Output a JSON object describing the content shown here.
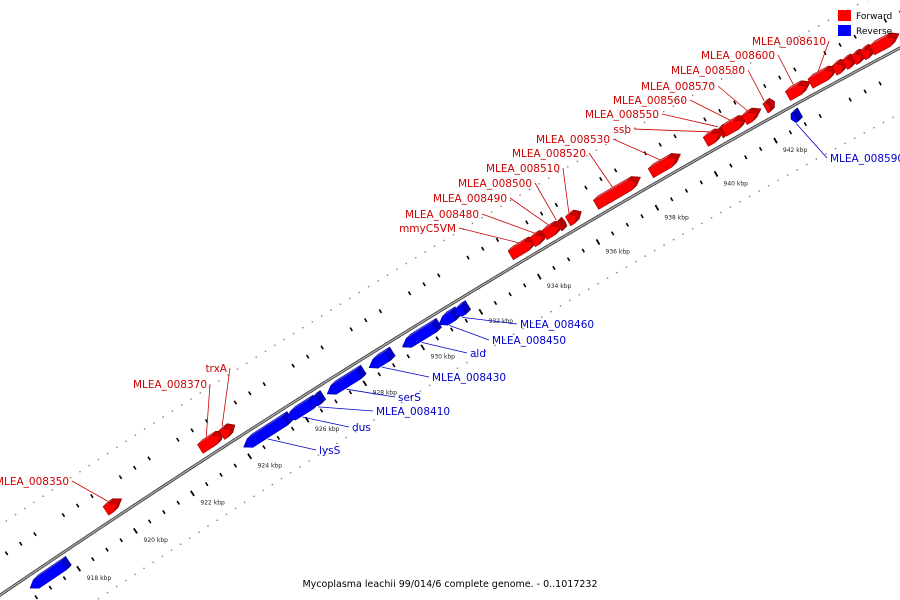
{
  "title": "Mycoplasma leachii 99/014/6 complete genome. - 0..1017232",
  "legend": {
    "placement": "top-right",
    "forward": {
      "label": "Forward",
      "color": "#ff0000"
    },
    "reverse": {
      "label": "Reverse",
      "color": "#0000ff"
    }
  },
  "colors": {
    "forward_label": "#cc0000",
    "reverse_label": "#0000cc",
    "backbone": "#888888",
    "tick": "#000000"
  },
  "axis": {
    "unit": "kbp",
    "ticks": [
      {
        "kbp": 918,
        "label": "918 kbp"
      },
      {
        "kbp": 920,
        "label": "920 kbp"
      },
      {
        "kbp": 922,
        "label": "922 kbp"
      },
      {
        "kbp": 924,
        "label": "924 kbp"
      },
      {
        "kbp": 926,
        "label": "926 kbp"
      },
      {
        "kbp": 928,
        "label": "928 kbp"
      },
      {
        "kbp": 930,
        "label": "930 kbp"
      },
      {
        "kbp": 932,
        "label": "932 kbp"
      },
      {
        "kbp": 934,
        "label": "934 kbp"
      },
      {
        "kbp": 936,
        "label": "936 kbp"
      },
      {
        "kbp": 938,
        "label": "938 kbp"
      },
      {
        "kbp": 940,
        "label": "940 kbp"
      },
      {
        "kbp": 942,
        "label": "942 kbp"
      }
    ]
  },
  "genes": [
    {
      "strand": "reverse",
      "start": 916.5,
      "end": 917.7,
      "label": ""
    },
    {
      "strand": "forward",
      "start": 919.6,
      "end": 920.0,
      "label": "MLEA_008350"
    },
    {
      "strand": "forward",
      "start": 922.9,
      "end": 923.6,
      "label": "MLEA_008370"
    },
    {
      "strand": "forward",
      "start": 923.65,
      "end": 923.95,
      "label": "trxA"
    },
    {
      "strand": "reverse",
      "start": 924.0,
      "end": 925.45,
      "label": "lysS"
    },
    {
      "strand": "reverse",
      "start": 925.5,
      "end": 926.35,
      "label": "dus"
    },
    {
      "strand": "reverse",
      "start": 926.35,
      "end": 926.6,
      "label": "MLEA_008410"
    },
    {
      "strand": "reverse",
      "start": 926.9,
      "end": 928.0,
      "label": "serS"
    },
    {
      "strand": "reverse",
      "start": 928.35,
      "end": 929.0,
      "label": "MLEA_008430"
    },
    {
      "strand": "reverse",
      "start": 929.5,
      "end": 930.6,
      "label": "ald"
    },
    {
      "strand": "reverse",
      "start": 930.75,
      "end": 931.25,
      "label": "MLEA_008450"
    },
    {
      "strand": "reverse",
      "start": 931.3,
      "end": 931.6,
      "label": "MLEA_008460"
    },
    {
      "strand": "forward",
      "start": 933.6,
      "end": 934.35,
      "label": "mmyC5VM"
    },
    {
      "strand": "forward",
      "start": 934.35,
      "end": 934.7,
      "label": "MLEA_008480"
    },
    {
      "strand": "forward",
      "start": 934.75,
      "end": 935.25,
      "label": "MLEA_008490"
    },
    {
      "strand": "forward",
      "start": 935.25,
      "end": 935.3,
      "label": "MLEA_008500"
    },
    {
      "strand": "forward",
      "start": 935.55,
      "end": 935.85,
      "label": "MLEA_008510"
    },
    {
      "strand": "forward",
      "start": 936.5,
      "end": 937.85,
      "label": "MLEA_008520"
    },
    {
      "strand": "forward",
      "start": 938.35,
      "end": 939.2,
      "label": "MLEA_008530"
    },
    {
      "strand": "forward",
      "start": 940.2,
      "end": 940.65,
      "label": "ssb"
    },
    {
      "strand": "forward",
      "start": 940.7,
      "end": 940.75,
      "label": "MLEA_008550"
    },
    {
      "strand": "forward",
      "start": 940.8,
      "end": 941.45,
      "label": "MLEA_008560"
    },
    {
      "strand": "forward",
      "start": 941.5,
      "end": 941.9,
      "label": "MLEA_008570"
    },
    {
      "strand": "forward",
      "start": 942.2,
      "end": 942.35,
      "label": "MLEA_008580"
    },
    {
      "strand": "reverse",
      "start": 942.7,
      "end": 942.85,
      "label": "MLEA_008590"
    },
    {
      "strand": "forward",
      "start": 942.95,
      "end": 943.55,
      "label": "MLEA_008600"
    },
    {
      "strand": "forward",
      "start": 943.7,
      "end": 944.45,
      "label": "MLEA_008610"
    },
    {
      "strand": "forward",
      "start": 944.5,
      "end": 944.8,
      "label": ""
    },
    {
      "strand": "forward",
      "start": 944.85,
      "end": 945.1,
      "label": ""
    },
    {
      "strand": "forward",
      "start": 945.15,
      "end": 945.4,
      "label": ""
    },
    {
      "strand": "forward",
      "start": 945.45,
      "end": 945.7,
      "label": ""
    },
    {
      "strand": "forward",
      "start": 945.75,
      "end": 946.5,
      "label": ""
    }
  ]
}
